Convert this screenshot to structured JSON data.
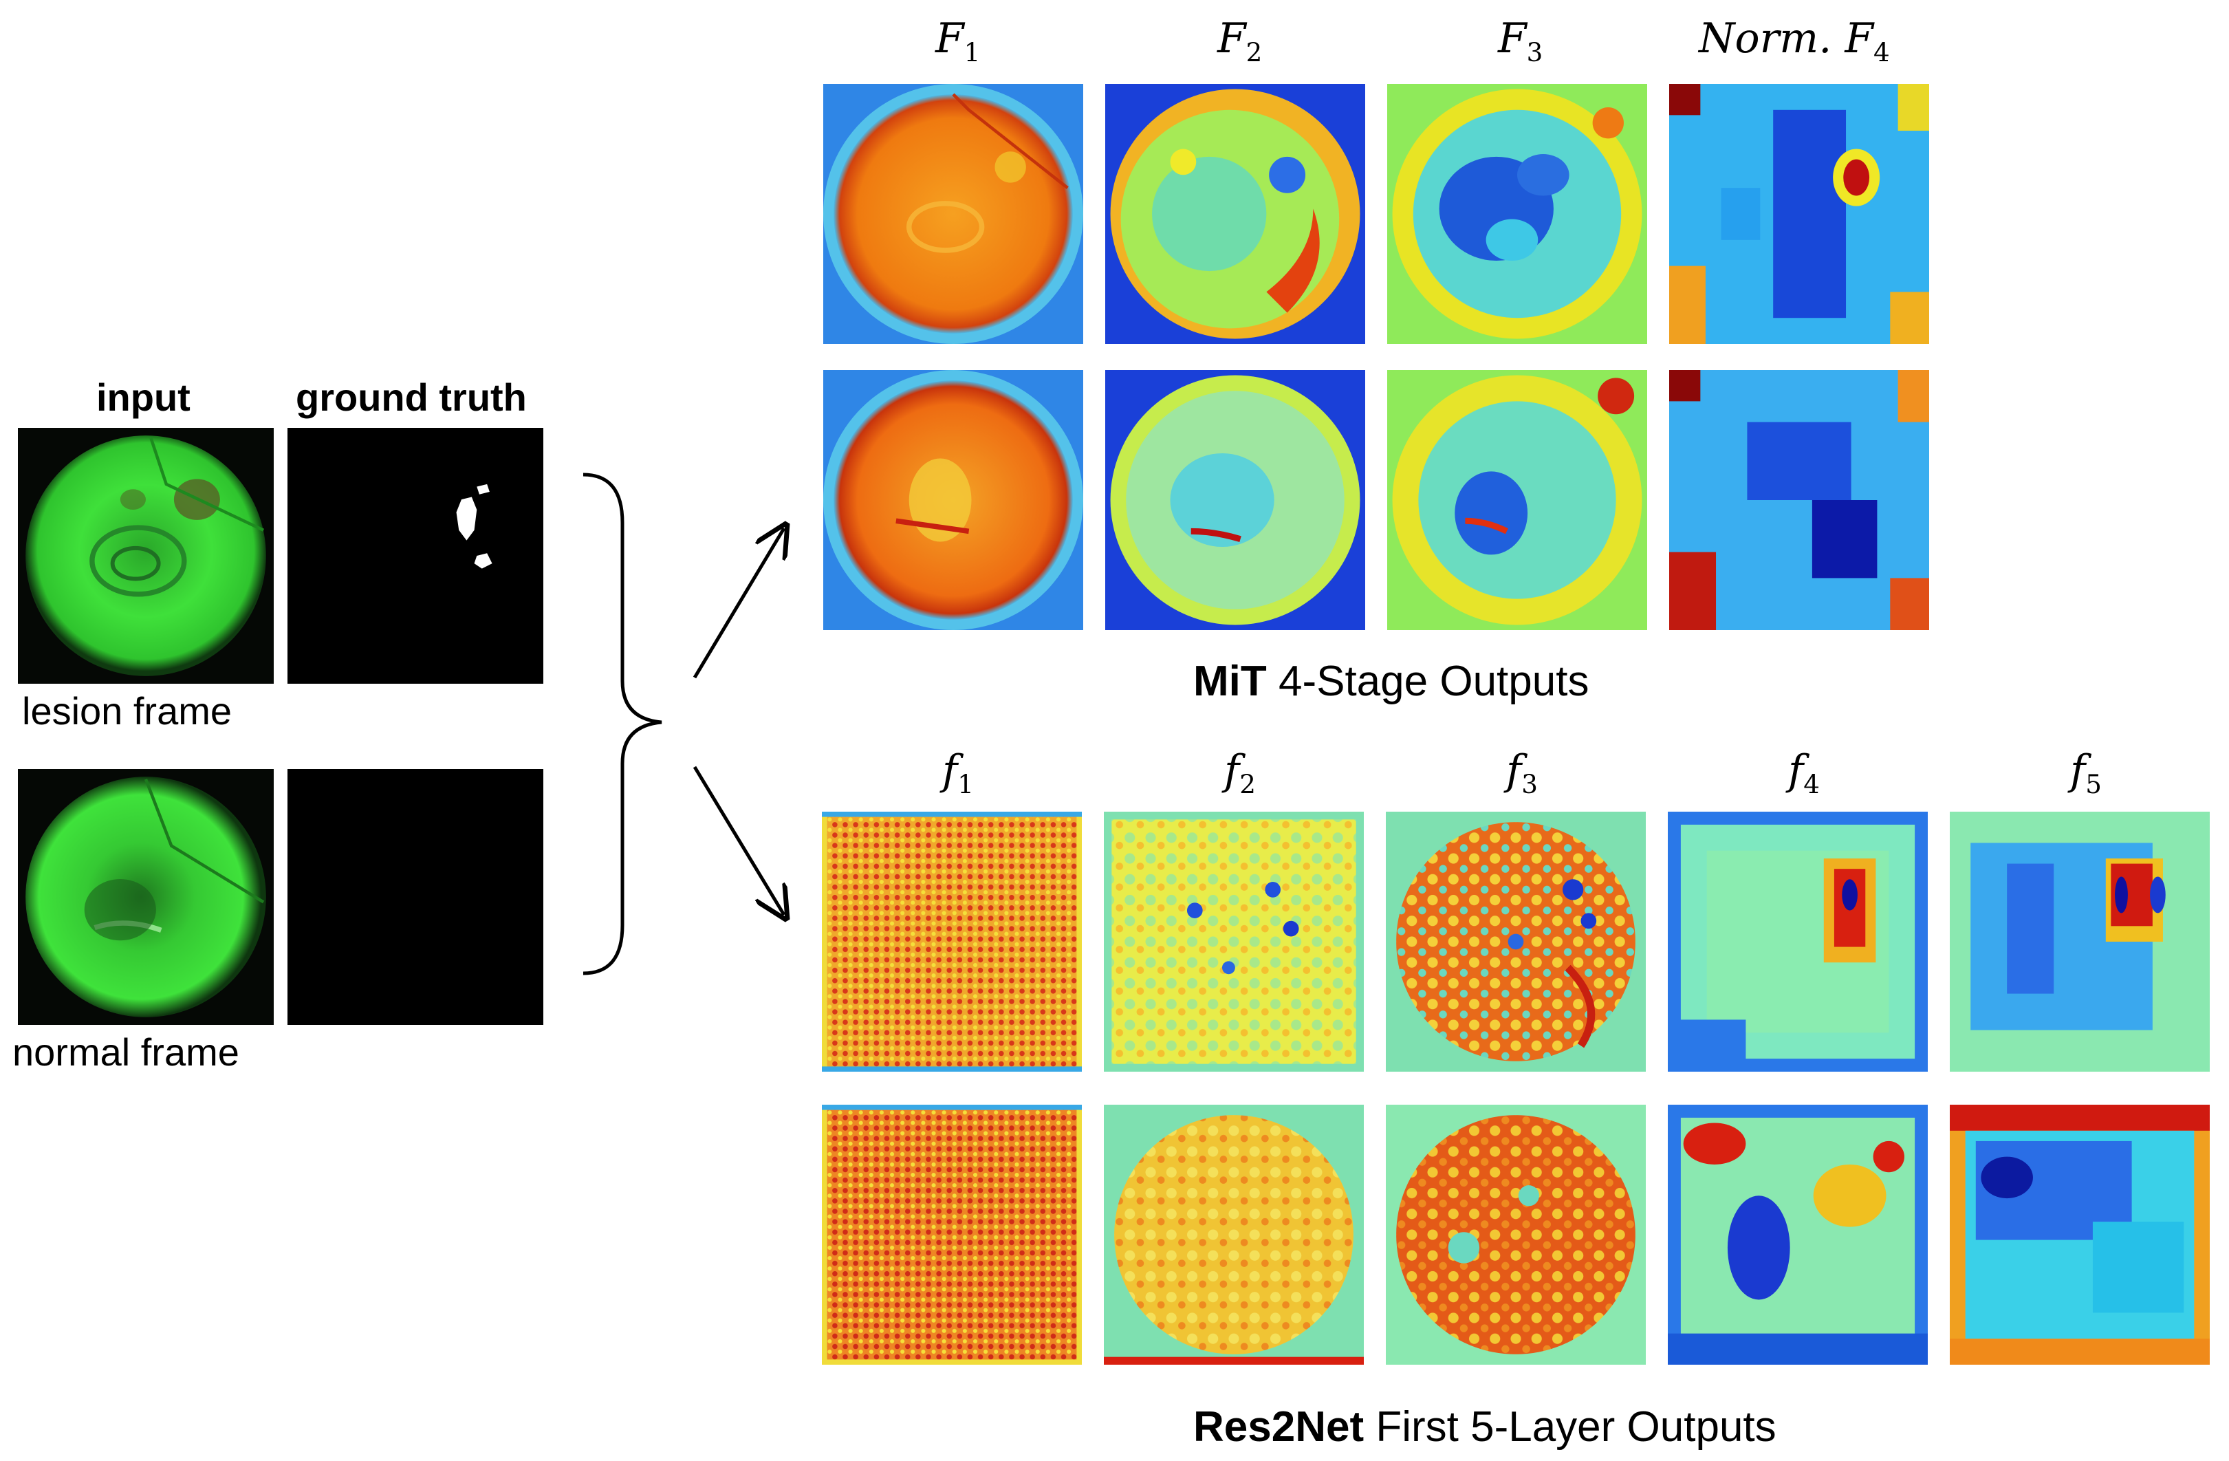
{
  "inputs": {
    "col_input": "input",
    "col_ground_truth": "ground truth",
    "row_lesion": "lesion frame",
    "row_normal": "normal frame"
  },
  "mit": {
    "heading_labels": [
      {
        "base": "F",
        "sub": "1",
        "prefix": ""
      },
      {
        "base": "F",
        "sub": "2",
        "prefix": ""
      },
      {
        "base": "F",
        "sub": "3",
        "prefix": ""
      },
      {
        "base": "F",
        "sub": "4",
        "prefix": "Norm. "
      }
    ],
    "title_bold": "MiT",
    "title_rest": " 4-Stage Outputs"
  },
  "res2net": {
    "heading_labels": [
      {
        "base": "f",
        "sub": "1",
        "prefix": ""
      },
      {
        "base": "f",
        "sub": "2",
        "prefix": ""
      },
      {
        "base": "f",
        "sub": "3",
        "prefix": ""
      },
      {
        "base": "f",
        "sub": "4",
        "prefix": ""
      },
      {
        "base": "f",
        "sub": "5",
        "prefix": ""
      }
    ],
    "title_bold": "Res2Net",
    "title_rest": " First 5-Layer Outputs"
  },
  "colors": {
    "endoscopy_green": "#3ee83a",
    "colormap": "jet",
    "jet_red": "#c0180c",
    "jet_orange": "#f37e12",
    "jet_yellow": "#f0f014",
    "jet_cyan": "#1ee6e8",
    "jet_blue": "#1a4ee8",
    "jet_darkblue": "#0a14a6"
  }
}
